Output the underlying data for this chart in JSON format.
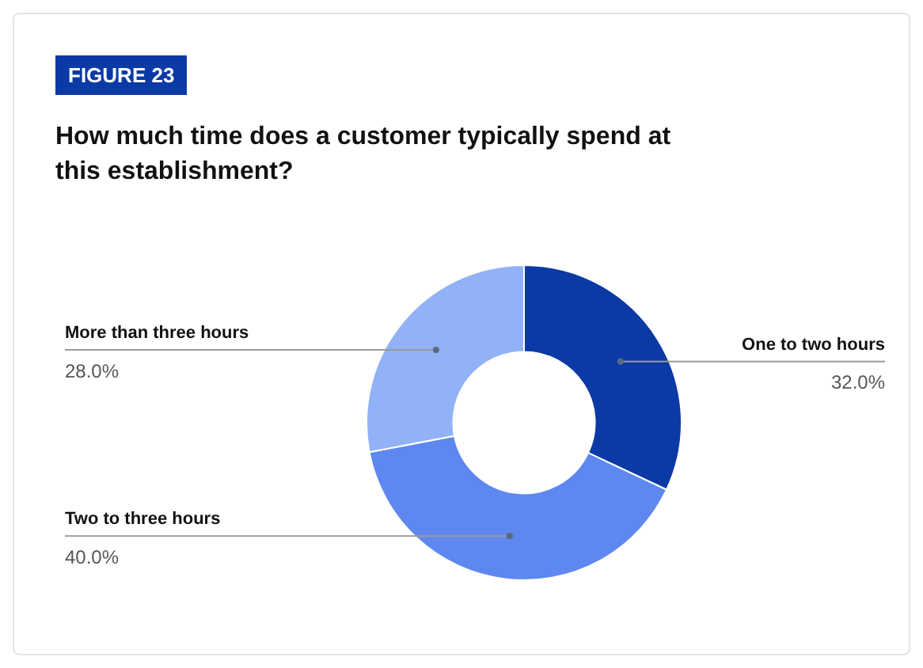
{
  "chart_data": {
    "type": "donut",
    "title": "How much time does a customer typically spend at this establishment?",
    "annotations": [
      "FIGURE 23"
    ],
    "categories": [
      "One to two hours",
      "Two to three hours",
      "More than three hours"
    ],
    "values": [
      32,
      40,
      28
    ],
    "colors": [
      "#0b3aa6",
      "#5e88ef",
      "#92b2f7"
    ],
    "value_labels": [
      "32.0%",
      "40.0%",
      "28.0%"
    ],
    "legend": false
  }
}
